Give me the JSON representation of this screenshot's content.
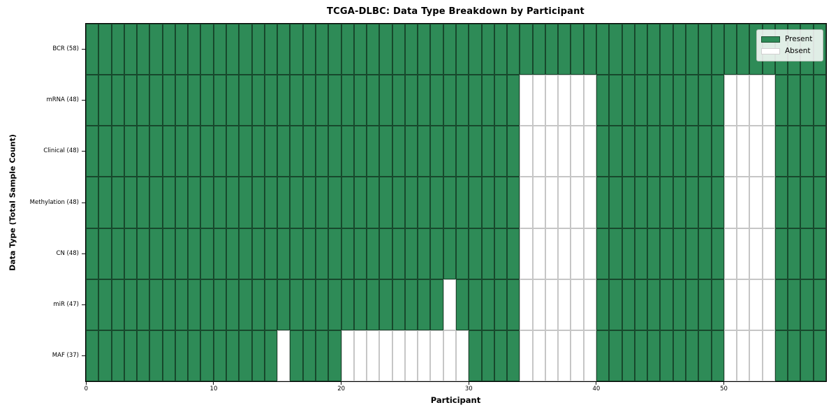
{
  "chart_data": {
    "type": "heatmap",
    "title": "TCGA-DLBC: Data Type Breakdown by Participant",
    "x_axis": {
      "label": "Participant",
      "ticks": [
        0,
        10,
        20,
        30,
        40,
        50
      ],
      "range": [
        0,
        58
      ]
    },
    "y_axis": {
      "label": "Data Type (Total Sample Count)"
    },
    "n_participants": 58,
    "legend": {
      "position": "upper right",
      "entries": [
        {
          "label": "Present",
          "color": "#2e8b57"
        },
        {
          "label": "Absent",
          "color": "#ffffff"
        }
      ]
    },
    "colors": {
      "present": "#2e8b57",
      "absent": "#ffffff",
      "present_edge": "#17482c",
      "absent_edge": "#c6c6c6",
      "frame": "#000000"
    },
    "grid": true,
    "rows": [
      {
        "label": "BCR (58)",
        "data_type": "BCR",
        "present_count": 58,
        "absent_participants": []
      },
      {
        "label": "mRNA (48)",
        "data_type": "mRNA",
        "present_count": 48,
        "absent_participants": [
          34,
          35,
          36,
          37,
          38,
          39,
          50,
          51,
          52,
          53
        ]
      },
      {
        "label": "Clinical (48)",
        "data_type": "Clinical",
        "present_count": 48,
        "absent_participants": [
          34,
          35,
          36,
          37,
          38,
          39,
          50,
          51,
          52,
          53
        ]
      },
      {
        "label": "Methylation (48)",
        "data_type": "Methylation",
        "present_count": 48,
        "absent_participants": [
          34,
          35,
          36,
          37,
          38,
          39,
          50,
          51,
          52,
          53
        ]
      },
      {
        "label": "CN (48)",
        "data_type": "CN",
        "present_count": 48,
        "absent_participants": [
          34,
          35,
          36,
          37,
          38,
          39,
          50,
          51,
          52,
          53
        ]
      },
      {
        "label": "miR (47)",
        "data_type": "miR",
        "present_count": 47,
        "absent_participants": [
          28,
          34,
          35,
          36,
          37,
          38,
          39,
          50,
          51,
          52,
          53
        ]
      },
      {
        "label": "MAF (37)",
        "data_type": "MAF",
        "present_count": 37,
        "absent_participants": [
          15,
          20,
          21,
          22,
          23,
          24,
          25,
          26,
          27,
          28,
          29,
          34,
          35,
          36,
          37,
          38,
          39,
          50,
          51,
          52,
          53
        ]
      }
    ]
  }
}
